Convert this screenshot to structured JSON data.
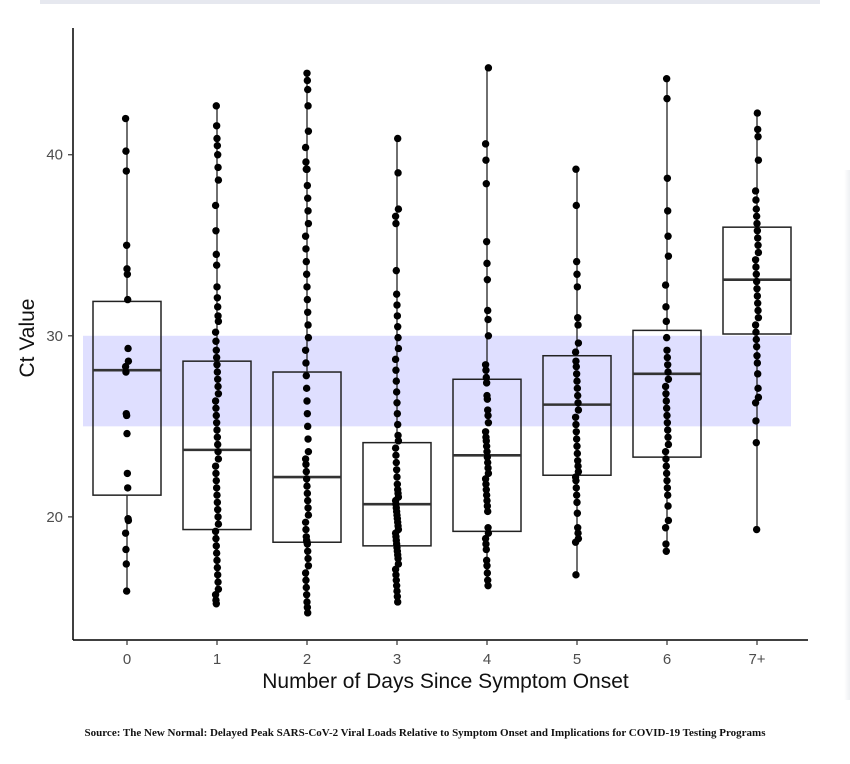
{
  "chart_data": {
    "type": "box",
    "xlabel": "Number of Days Since Symptom Onset",
    "ylabel": "Ct Value",
    "categories": [
      "0",
      "1",
      "2",
      "3",
      "4",
      "5",
      "6",
      "7+"
    ],
    "ylim": [
      13.2,
      47.0
    ],
    "yticks": [
      20,
      30,
      40
    ],
    "band": {
      "ymin": 25,
      "ymax": 30,
      "color": "#d9d9ff"
    },
    "boxes": [
      {
        "category": "0",
        "q1": 21.2,
        "median": 28.1,
        "q3": 31.9,
        "whisker_low": 15.9,
        "whisker_high": 42.1
      },
      {
        "category": "1",
        "q1": 19.3,
        "median": 23.7,
        "q3": 28.6,
        "whisker_low": 15.2,
        "whisker_high": 42.8
      },
      {
        "category": "2",
        "q1": 18.6,
        "median": 22.2,
        "q3": 28.0,
        "whisker_low": 14.7,
        "whisker_high": 44.5
      },
      {
        "category": "3",
        "q1": 18.4,
        "median": 20.7,
        "q3": 24.1,
        "whisker_low": 15.2,
        "whisker_high": 40.9
      },
      {
        "category": "4",
        "q1": 19.2,
        "median": 23.4,
        "q3": 27.6,
        "whisker_low": 16.2,
        "whisker_high": 44.8
      },
      {
        "category": "5",
        "q1": 22.3,
        "median": 26.2,
        "q3": 28.9,
        "whisker_low": 16.8,
        "whisker_high": 39.2
      },
      {
        "category": "6",
        "q1": 23.3,
        "median": 27.9,
        "q3": 30.3,
        "whisker_low": 18.0,
        "whisker_high": 44.2
      },
      {
        "category": "7+",
        "q1": 30.1,
        "median": 33.1,
        "q3": 36.0,
        "whisker_low": 19.3,
        "whisker_high": 42.3
      }
    ],
    "points": [
      {
        "category": "0",
        "values": [
          42.0,
          40.2,
          39.1,
          35.0,
          33.7,
          33.4,
          32.0,
          29.3,
          28.6,
          28.3,
          28.0,
          25.7,
          25.6,
          24.6,
          22.4,
          21.6,
          19.9,
          19.8,
          19.1,
          18.2,
          17.4,
          15.9
        ]
      },
      {
        "category": "1",
        "values": [
          42.7,
          41.6,
          40.9,
          40.5,
          40.0,
          39.3,
          38.6,
          37.2,
          35.8,
          34.5,
          33.9,
          32.7,
          32.1,
          31.6,
          31.1,
          30.8,
          30.2,
          29.7,
          29.2,
          28.8,
          28.4,
          28.0,
          27.6,
          27.2,
          26.8,
          26.4,
          26.0,
          25.6,
          25.2,
          24.8,
          24.4,
          24.0,
          23.6,
          23.2,
          22.8,
          22.4,
          22.0,
          21.6,
          21.2,
          20.8,
          20.4,
          20.0,
          19.6,
          19.2,
          18.8,
          18.4,
          18.0,
          17.6,
          17.2,
          16.8,
          16.4,
          16.0,
          15.7,
          15.4,
          15.2
        ]
      },
      {
        "category": "2",
        "values": [
          44.5,
          44.1,
          43.6,
          42.7,
          41.3,
          40.4,
          39.6,
          39.2,
          39.2,
          39.2,
          38.3,
          37.6,
          36.9,
          36.2,
          35.5,
          34.8,
          34.1,
          33.4,
          32.7,
          32.0,
          31.3,
          30.6,
          29.9,
          29.2,
          28.5,
          27.8,
          27.1,
          26.4,
          25.7,
          25.0,
          24.3,
          23.6,
          23.2,
          22.9,
          22.5,
          22.1,
          21.7,
          21.3,
          20.9,
          20.5,
          20.1,
          19.7,
          19.3,
          18.9,
          18.7,
          18.6,
          18.5,
          18.1,
          17.7,
          17.3,
          16.9,
          16.5,
          16.1,
          15.7,
          15.3,
          15.0,
          14.7
        ]
      },
      {
        "category": "3",
        "values": [
          40.9,
          39.0,
          37.0,
          36.6,
          36.2,
          33.6,
          32.3,
          31.7,
          31.1,
          30.5,
          29.9,
          29.3,
          28.7,
          28.1,
          27.5,
          26.9,
          26.3,
          25.7,
          25.1,
          24.5,
          24.2,
          23.8,
          23.4,
          23.0,
          22.6,
          22.2,
          21.8,
          21.5,
          21.3,
          21.1,
          20.9,
          20.7,
          20.5,
          20.3,
          20.1,
          19.9,
          19.7,
          19.5,
          19.3,
          19.1,
          18.9,
          18.7,
          18.5,
          18.3,
          18.1,
          17.9,
          17.7,
          17.4,
          17.1,
          16.8,
          16.5,
          16.2,
          15.9,
          15.6,
          15.3
        ]
      },
      {
        "category": "4",
        "values": [
          44.8,
          40.6,
          39.7,
          38.4,
          35.2,
          34.0,
          33.1,
          31.4,
          30.9,
          30.0,
          28.4,
          28.1,
          27.7,
          27.4,
          26.7,
          26.5,
          25.9,
          25.6,
          25.2,
          24.7,
          24.4,
          24.2,
          23.9,
          23.6,
          23.3,
          23.0,
          22.7,
          22.4,
          22.1,
          21.8,
          21.5,
          21.2,
          20.9,
          20.6,
          20.3,
          19.4,
          19.1,
          18.8,
          18.5,
          18.2,
          17.6,
          17.3,
          16.9,
          16.5,
          16.2
        ]
      },
      {
        "category": "5",
        "values": [
          39.2,
          37.2,
          34.1,
          33.4,
          32.7,
          31.0,
          30.6,
          29.6,
          29.1,
          28.6,
          28.3,
          27.9,
          27.5,
          27.1,
          26.7,
          26.3,
          25.9,
          25.5,
          25.1,
          24.7,
          24.3,
          23.9,
          23.5,
          23.1,
          22.8,
          22.5,
          22.2,
          22.0,
          21.6,
          21.2,
          20.8,
          20.2,
          19.4,
          19.1,
          18.8,
          18.6,
          16.8
        ]
      },
      {
        "category": "6",
        "values": [
          44.2,
          43.1,
          38.7,
          36.9,
          35.5,
          34.4,
          32.8,
          31.6,
          30.8,
          29.9,
          29.2,
          28.8,
          28.4,
          28.0,
          27.6,
          27.2,
          26.8,
          26.4,
          26.0,
          25.6,
          25.2,
          24.8,
          24.4,
          24.0,
          23.6,
          23.2,
          22.8,
          22.4,
          22.0,
          21.6,
          21.2,
          20.6,
          19.8,
          19.4,
          18.5,
          18.1
        ]
      },
      {
        "category": "7+",
        "values": [
          42.3,
          41.4,
          41.0,
          39.7,
          38.0,
          37.5,
          37.0,
          36.6,
          36.2,
          35.8,
          35.4,
          35.0,
          34.6,
          34.2,
          33.8,
          33.4,
          33.0,
          32.6,
          32.2,
          31.8,
          31.4,
          31.0,
          30.6,
          30.2,
          29.8,
          29.4,
          28.9,
          28.5,
          27.9,
          27.1,
          26.6,
          26.3,
          25.3,
          24.1,
          19.3
        ]
      }
    ]
  },
  "source": "Source: The New Normal: Delayed Peak SARS-CoV-2 Viral Loads Relative to Symptom Onset and Implications for COVID-19 Testing Programs"
}
